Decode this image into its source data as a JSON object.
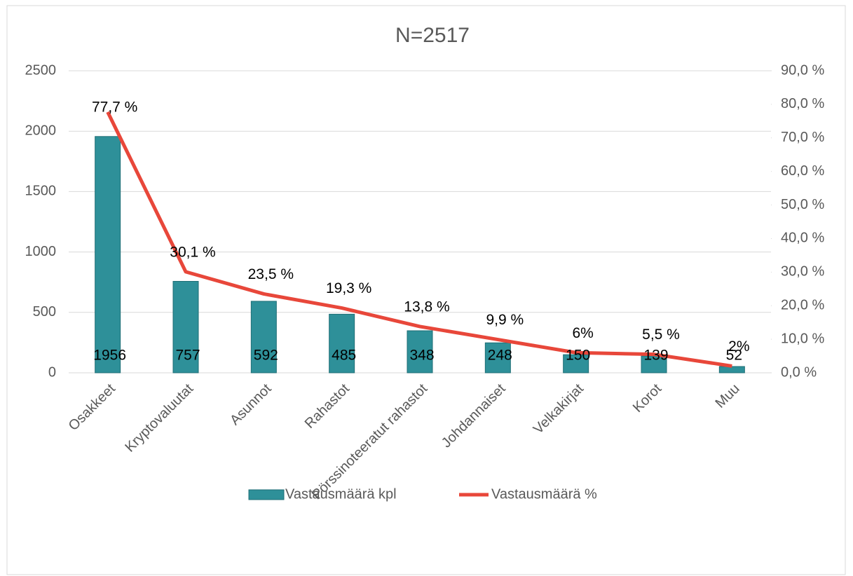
{
  "chart_data": {
    "type": "bar_line",
    "title": "N=2517",
    "categories": [
      "Osakkeet",
      "Kryptovaluutat",
      "Asunnot",
      "Rahastot",
      "Pörssinoteeratut rahastot",
      "Johdannaiset",
      "Velkakirjat",
      "Korot",
      "Muu"
    ],
    "series": [
      {
        "name": "Vastausmäärä kpl",
        "type": "bar",
        "color": "#2e9099",
        "values": [
          1956,
          757,
          592,
          485,
          348,
          248,
          150,
          139,
          52
        ]
      },
      {
        "name": "Vastausmäärä %",
        "type": "line",
        "axis": "y2",
        "color": "#e8473a",
        "values": [
          77.7,
          30.1,
          23.5,
          19.3,
          13.8,
          9.9,
          6,
          5.5,
          2
        ],
        "value_labels": [
          "77,7 %",
          "30,1 %",
          "23,5 %",
          "19,3 %",
          "13,8 %",
          "9,9 %",
          "6%",
          "5,5 %",
          "2%"
        ]
      }
    ],
    "ylim": [
      0,
      2500
    ],
    "yticks": [
      0,
      500,
      1000,
      1500,
      2000,
      2500
    ],
    "y2lim": [
      0,
      90
    ],
    "y2ticks": [
      {
        "value": 0,
        "label": "0,0 %"
      },
      {
        "value": 10,
        "label": "10,0 %"
      },
      {
        "value": 20,
        "label": "20,0 %"
      },
      {
        "value": 30,
        "label": "30,0 %"
      },
      {
        "value": 40,
        "label": "40,0 %"
      },
      {
        "value": 50,
        "label": "50,0 %"
      },
      {
        "value": 60,
        "label": "60,0 %"
      },
      {
        "value": 70,
        "label": "70,0 %"
      },
      {
        "value": 80,
        "label": "80,0 %"
      },
      {
        "value": 90,
        "label": "90,0 %"
      }
    ],
    "grid": true,
    "legend": "bottom"
  }
}
